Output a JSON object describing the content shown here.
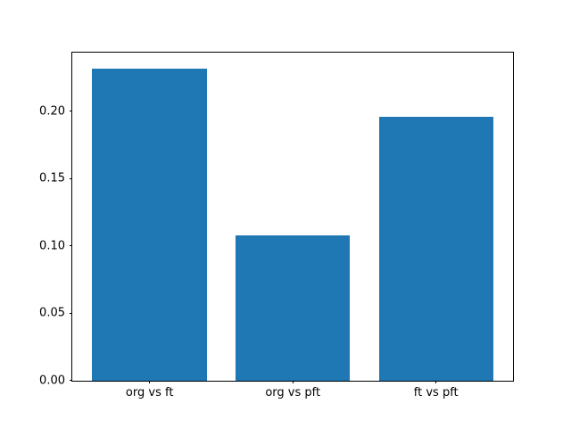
{
  "chart_data": {
    "type": "bar",
    "categories": [
      "org vs ft",
      "org vs pft",
      "ft vs pft"
    ],
    "values": [
      0.232,
      0.108,
      0.196
    ],
    "title": "",
    "xlabel": "",
    "ylabel": "",
    "ylim": [
      0,
      0.244
    ],
    "yticks": [
      0.0,
      0.05,
      0.1,
      0.15,
      0.2
    ],
    "ytick_labels": [
      "0.00",
      "0.05",
      "0.10",
      "0.15",
      "0.20"
    ],
    "xlim": [
      -0.54,
      2.54
    ],
    "bar_width": 0.8,
    "bar_color": "#1f77b4",
    "spine_color": "#000000",
    "grid": false,
    "legend": false
  }
}
